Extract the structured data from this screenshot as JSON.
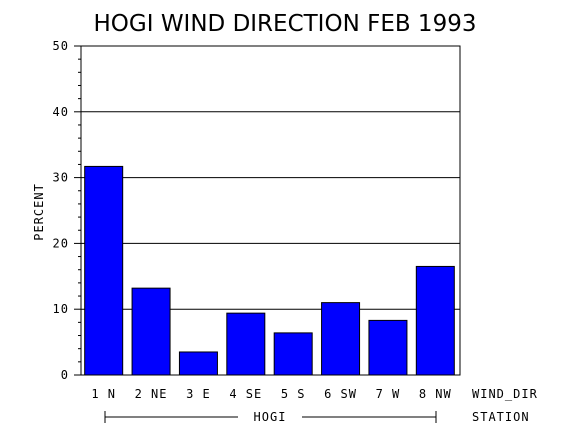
{
  "chart_data": {
    "type": "bar",
    "title": "HOGI WIND DIRECTION FEB 1993",
    "ylabel": "PERCENT",
    "xlabel": "WIND_DIR",
    "group_axis_label": "STATION",
    "group_label": "HOGI",
    "ylim": [
      0,
      50
    ],
    "yticks": [
      0,
      10,
      20,
      30,
      40,
      50
    ],
    "grid": true,
    "bar_color": "#0000ff",
    "categories": [
      "1 N",
      "2 NE",
      "3 E",
      "4 SE",
      "5 S",
      "6 SW",
      "7 W",
      "8 NW"
    ],
    "values": [
      31.7,
      13.2,
      3.5,
      9.4,
      6.4,
      11.0,
      8.3,
      16.5
    ]
  }
}
